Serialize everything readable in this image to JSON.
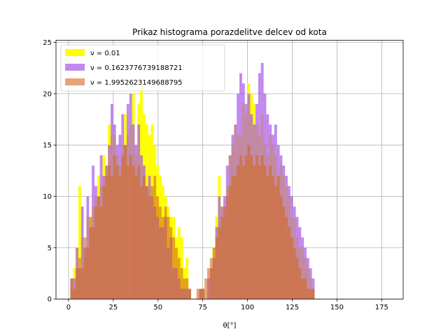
{
  "chart_data": {
    "type": "bar",
    "title": "Prikaz histograma porazdelitve delcev od kota",
    "xlabel": "θ[°]",
    "ylabel": "",
    "xlim": [
      -7,
      187
    ],
    "ylim": [
      0,
      25.2
    ],
    "grid": true,
    "legend_position": "top-left",
    "x_ticks": [
      0,
      25,
      50,
      75,
      100,
      125,
      150,
      175
    ],
    "y_ticks": [
      0,
      5,
      10,
      15,
      20,
      25
    ],
    "bin_start": 1,
    "bin_width": 1.5,
    "series": [
      {
        "name": "ν = 0.01",
        "color": "#ffff00",
        "opacity": 1.0,
        "values": [
          1,
          3,
          5,
          11,
          6,
          4,
          8,
          8,
          9,
          10,
          12,
          11,
          14,
          13,
          17,
          16,
          16,
          14,
          13,
          15,
          18,
          16,
          17,
          20,
          14,
          19,
          21,
          18,
          17,
          16,
          17,
          15,
          13,
          12,
          11,
          10,
          9,
          8,
          8,
          6,
          7,
          6,
          3,
          4,
          1,
          0,
          0,
          0,
          1,
          1,
          0,
          0,
          3,
          5,
          8,
          12,
          9,
          8,
          11,
          14,
          15,
          17,
          16,
          16,
          19,
          18,
          21,
          20,
          19,
          17,
          16,
          18,
          15,
          14,
          16,
          15,
          14,
          12,
          13,
          12,
          11,
          10,
          8,
          8,
          6,
          5,
          5,
          4,
          3,
          2,
          1
        ]
      },
      {
        "name": "ν = 0.1623776739188721",
        "color": "#a855e8",
        "opacity": 0.7,
        "values": [
          2,
          2,
          5,
          3,
          9,
          5,
          10,
          7,
          13,
          11,
          10,
          14,
          12,
          13,
          15,
          19,
          17,
          15,
          16,
          18,
          15,
          19,
          20,
          17,
          15,
          17,
          14,
          13,
          11,
          12,
          10,
          9,
          8,
          7,
          7,
          8,
          5,
          6,
          3,
          3,
          2,
          1,
          1,
          1,
          1,
          0,
          0,
          0,
          1,
          1,
          0,
          2,
          3,
          4,
          7,
          10,
          9,
          10,
          13,
          14,
          16,
          17,
          20,
          22,
          21,
          19,
          20,
          18,
          17,
          19,
          22,
          23,
          20,
          18,
          17,
          16,
          17,
          15,
          14,
          13,
          12,
          11,
          10,
          9,
          8,
          7,
          6,
          5,
          4,
          3,
          2
        ]
      },
      {
        "name": "ν = 1.9952623149688795",
        "color": "#d2691e",
        "opacity": 0.6,
        "values": [
          2,
          1,
          3,
          4,
          3,
          6,
          5,
          8,
          7,
          9,
          10,
          9,
          11,
          12,
          13,
          12,
          14,
          13,
          12,
          14,
          15,
          13,
          14,
          13,
          12,
          13,
          11,
          12,
          11,
          10,
          11,
          12,
          10,
          9,
          8,
          9,
          8,
          7,
          6,
          5,
          4,
          3,
          2,
          2,
          1,
          0,
          0,
          1,
          1,
          1,
          2,
          3,
          4,
          5,
          6,
          7,
          8,
          9,
          10,
          11,
          12,
          12,
          13,
          14,
          13,
          14,
          15,
          14,
          13,
          14,
          13,
          14,
          13,
          12,
          13,
          12,
          11,
          12,
          10,
          9,
          8,
          7,
          6,
          5,
          4,
          3,
          2,
          2,
          1,
          1,
          1
        ]
      }
    ]
  }
}
